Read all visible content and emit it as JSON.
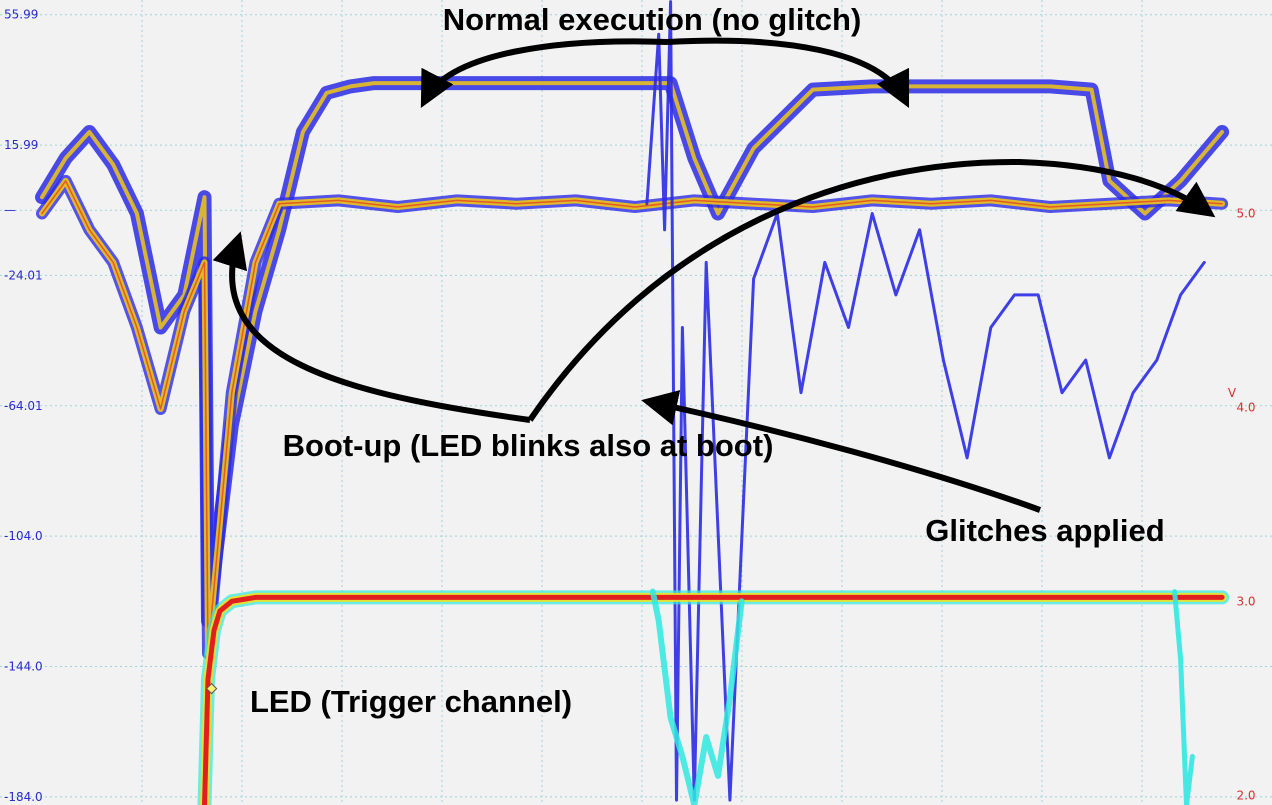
{
  "chart_data": {
    "type": "line",
    "title": "",
    "xlabel": "",
    "ylabel": "",
    "grid": true,
    "left_axis": {
      "ticks": [
        "55.99",
        "15.99",
        "—",
        "-24.01",
        "-64.01",
        "-104.0",
        "-144.0",
        "-184.0"
      ],
      "values": [
        55.99,
        15.99,
        -4.01,
        -24.01,
        -64.01,
        -104.0,
        -144.0,
        -184.0
      ],
      "ylim": [
        -186.5,
        60.5
      ],
      "color": "#2a2ad0"
    },
    "right_axis": {
      "unit": "V",
      "ticks": [
        "5.0",
        "4.0",
        "3.0",
        "2.0"
      ],
      "values": [
        5.0,
        4.0,
        3.0,
        2.0
      ],
      "ylim": [
        1.95,
        6.1
      ],
      "color": "#d83030"
    },
    "xlim": [
      0,
      100
    ],
    "series": [
      {
        "role": "normal-execution",
        "color": "#2b2be6",
        "x": [
          0,
          2,
          4,
          6,
          8,
          10,
          12,
          13.7,
          14,
          16,
          18,
          20,
          22,
          24,
          26,
          28,
          30,
          35,
          40,
          45,
          50,
          53,
          55,
          57,
          60,
          65,
          70,
          75,
          80,
          85,
          88.5,
          90,
          93,
          96,
          99.5
        ],
        "y": [
          0,
          12,
          20,
          10,
          -5,
          -40,
          -30,
          0,
          -130,
          -70,
          -35,
          -10,
          20,
          32,
          34,
          35,
          35,
          35,
          35,
          35,
          35,
          35,
          12,
          -5,
          15,
          33,
          34,
          34,
          34,
          34,
          33,
          5,
          -5,
          5,
          20
        ]
      },
      {
        "role": "boot-up",
        "color": "#e8c020",
        "x": [
          0,
          2,
          4,
          6,
          8,
          10,
          12,
          13.7,
          14,
          16,
          18,
          20,
          25,
          30,
          35,
          40,
          45,
          50,
          55,
          60,
          65,
          70,
          75,
          80,
          85,
          90,
          95,
          99.5
        ],
        "y": [
          -5,
          5,
          -10,
          -20,
          -40,
          -65,
          -35,
          -20,
          -140,
          -60,
          -20,
          -2,
          -1,
          -3,
          -1,
          -2,
          -1,
          -3,
          -1,
          -2,
          -3,
          -1,
          -2,
          -1,
          -3,
          -2,
          -1,
          -2
        ]
      },
      {
        "role": "glitches-applied",
        "color": "#2b2be6",
        "x": [
          51,
          52,
          52.5,
          53,
          53.5,
          54,
          55,
          56,
          58,
          60,
          62,
          64,
          66,
          68,
          70,
          72,
          74,
          76,
          78,
          80,
          82,
          84,
          86,
          88,
          90,
          92,
          94,
          96,
          98
        ],
        "y": [
          -2,
          50,
          -10,
          60,
          -185,
          -40,
          -185,
          -20,
          -185,
          -25,
          -5,
          -60,
          -20,
          -40,
          -5,
          -30,
          -10,
          -50,
          -80,
          -40,
          -30,
          -30,
          -60,
          -50,
          -80,
          -60,
          -50,
          -30,
          -20
        ]
      },
      {
        "role": "led-trigger-channel",
        "axis": "right",
        "color": "#e02020",
        "x": [
          13.7,
          14,
          14.5,
          15,
          16,
          17,
          18,
          20,
          30,
          40,
          50,
          60,
          70,
          80,
          90,
          99.5
        ],
        "y": [
          1.95,
          2.6,
          2.85,
          2.95,
          3.0,
          3.01,
          3.02,
          3.02,
          3.02,
          3.02,
          3.02,
          3.02,
          3.02,
          3.02,
          3.02,
          3.02
        ]
      },
      {
        "role": "led-glitch-dips",
        "axis": "right",
        "color": "#30e8e0",
        "x": [
          51.5,
          52,
          53,
          54,
          55,
          56,
          57,
          58,
          59
        ],
        "y": [
          3.05,
          2.9,
          2.4,
          2.2,
          1.95,
          2.3,
          2.1,
          2.5,
          3.0
        ]
      },
      {
        "role": "led-late-dip",
        "axis": "right",
        "color": "#30e8e0",
        "x": [
          95.5,
          96,
          96.5,
          97
        ],
        "y": [
          3.05,
          2.7,
          1.95,
          2.2
        ]
      }
    ],
    "annotations": [
      {
        "text": "Normal execution (no glitch)"
      },
      {
        "text": "Boot-up (LED blinks also at boot)"
      },
      {
        "text": "Glitches applied"
      },
      {
        "text": "LED (Trigger channel)"
      }
    ],
    "marker": {
      "x": 14.3,
      "y_right": 2.55,
      "color": "#f8f070"
    }
  }
}
